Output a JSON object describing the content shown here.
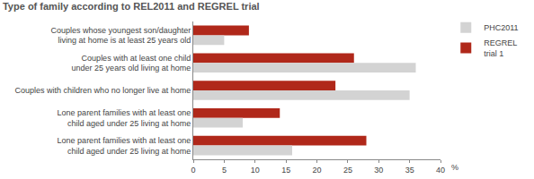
{
  "chart_data": {
    "type": "bar",
    "orientation": "horizontal",
    "title": "Type of family according to REL2011 and REGREL trial",
    "categories": [
      "Couples whose youngest son/daughter\nliving at home is at least 25 years old",
      "Couples with at least one child\nunder 25 years old living at home",
      "Couples with children who no longer live at home",
      "Lone parent families with at least one\nchild aged under 25 living at home",
      "Lone parent families with at least one\nchild aged under 25 living at home"
    ],
    "series": [
      {
        "name": "PHC2011",
        "color": "#d3d3d3",
        "values": [
          5,
          36,
          35,
          8,
          16
        ]
      },
      {
        "name": "REGREL\ntrial 1",
        "color": "#b0281a",
        "values": [
          9,
          26,
          23,
          14,
          28
        ]
      }
    ],
    "xlabel": "%",
    "xlim": [
      0,
      40
    ],
    "xticks": [
      0,
      5,
      10,
      15,
      20,
      25,
      30,
      35,
      40
    ],
    "grid": false,
    "legend": "upper right"
  }
}
